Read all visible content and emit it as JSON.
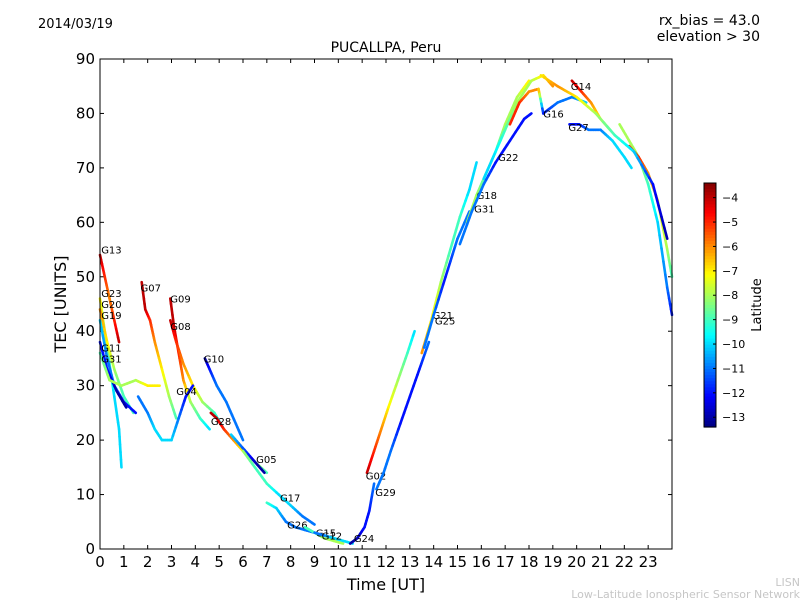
{
  "header": {
    "date": "2014/03/19",
    "rx_bias": "rx_bias = 43.0",
    "elevation": "elevation > 30"
  },
  "footer": {
    "line1": "LISN",
    "line2": "Low-Latitude Ionospheric Sensor Network"
  },
  "chart_data": {
    "type": "scatter",
    "title": "PUCALLPA, Peru",
    "xlabel": "Time [UT]",
    "ylabel": "TEC [UNITS]",
    "xlim": [
      0,
      24
    ],
    "ylim": [
      0,
      90
    ],
    "xticks": [
      0,
      1,
      2,
      3,
      4,
      5,
      6,
      7,
      8,
      9,
      10,
      11,
      12,
      13,
      14,
      15,
      16,
      17,
      18,
      19,
      20,
      21,
      22,
      23
    ],
    "yticks": [
      0,
      10,
      20,
      30,
      40,
      50,
      60,
      70,
      80,
      90
    ],
    "grid": false,
    "colorbar": {
      "label": "Latitude",
      "min": -13.4,
      "max": -3.4,
      "ticks": [
        -4,
        -5,
        -6,
        -7,
        -8,
        -9,
        -10,
        -11,
        -12,
        -13
      ],
      "colormap": "jet"
    },
    "series": [
      {
        "name": "G13",
        "label_at": [
          0.05,
          55
        ],
        "points": [
          [
            0,
            54,
            -4
          ],
          [
            0.2,
            50,
            -5
          ],
          [
            0.4,
            46,
            -6
          ],
          [
            0.6,
            42,
            -5
          ],
          [
            0.8,
            38,
            -4
          ]
        ]
      },
      {
        "name": "G23",
        "label_at": [
          0.05,
          47
        ],
        "points": [
          [
            0,
            46,
            -7
          ],
          [
            0.2,
            40,
            -8
          ],
          [
            0.4,
            34,
            -9
          ],
          [
            0.6,
            28,
            -10
          ],
          [
            0.8,
            22,
            -10
          ],
          [
            0.9,
            15,
            -10
          ]
        ]
      },
      {
        "name": "G20",
        "label_at": [
          0.05,
          45
        ],
        "points": [
          [
            0,
            44,
            -6
          ],
          [
            0.3,
            38,
            -7
          ],
          [
            0.6,
            33,
            -8
          ],
          [
            1,
            28,
            -9
          ],
          [
            1.4,
            25,
            -9
          ]
        ]
      },
      {
        "name": "G19",
        "label_at": [
          0.05,
          43
        ],
        "points": [
          [
            0,
            42,
            -10
          ],
          [
            0.3,
            35,
            -11
          ],
          [
            0.6,
            30,
            -11
          ],
          [
            1,
            27,
            -12
          ],
          [
            1.5,
            25,
            -12
          ]
        ]
      },
      {
        "name": "G11",
        "label_at": [
          0.05,
          37
        ],
        "points": [
          [
            0,
            38,
            -12
          ],
          [
            0.3,
            33,
            -12
          ],
          [
            0.7,
            29,
            -13
          ],
          [
            1.1,
            26,
            -13
          ]
        ]
      },
      {
        "name": "G31",
        "label_at": [
          0.05,
          35
        ],
        "points": [
          [
            0,
            36,
            -9
          ],
          [
            0.4,
            31,
            -8
          ],
          [
            0.9,
            30,
            -8
          ],
          [
            1.5,
            31,
            -8
          ],
          [
            2,
            30,
            -7
          ],
          [
            2.5,
            30,
            -7
          ]
        ]
      },
      {
        "name": "G07",
        "label_at": [
          1.7,
          48
        ],
        "points": [
          [
            1.75,
            49,
            -4
          ],
          [
            1.9,
            44,
            -4
          ],
          [
            2.1,
            42,
            -5
          ],
          [
            2.3,
            38,
            -6
          ],
          [
            2.6,
            33,
            -7
          ],
          [
            2.9,
            28,
            -8
          ],
          [
            3.2,
            24,
            -9
          ]
        ]
      },
      {
        "name": "G09",
        "label_at": [
          2.95,
          46
        ],
        "points": [
          [
            2.95,
            46,
            -4
          ],
          [
            3.1,
            41,
            -4
          ],
          [
            3.3,
            36,
            -5
          ],
          [
            3.5,
            31,
            -6
          ],
          [
            3.8,
            27,
            -8
          ],
          [
            4.2,
            24,
            -9
          ],
          [
            4.6,
            22,
            -10
          ]
        ]
      },
      {
        "name": "G08",
        "label_at": [
          2.95,
          41
        ],
        "points": [
          [
            2.95,
            42,
            -4
          ],
          [
            3.2,
            38,
            -5
          ],
          [
            3.5,
            34,
            -6
          ],
          [
            3.9,
            30,
            -7
          ],
          [
            4.3,
            27,
            -8
          ],
          [
            4.8,
            25,
            -9
          ],
          [
            5.2,
            22,
            -10
          ]
        ]
      },
      {
        "name": "G10",
        "label_at": [
          4.35,
          35
        ],
        "points": [
          [
            4.4,
            35,
            -13
          ],
          [
            4.6,
            33,
            -12
          ],
          [
            4.9,
            30,
            -11
          ],
          [
            5.3,
            27,
            -11
          ],
          [
            5.7,
            23,
            -11
          ],
          [
            6,
            20,
            -11
          ]
        ]
      },
      {
        "name": "G04",
        "label_at": [
          3.2,
          29
        ],
        "points": [
          [
            1.6,
            28,
            -11
          ],
          [
            2,
            25,
            -11
          ],
          [
            2.3,
            22,
            -10
          ],
          [
            2.6,
            20,
            -10
          ],
          [
            3,
            20,
            -10
          ],
          [
            3.3,
            24,
            -11
          ],
          [
            3.6,
            28,
            -12
          ],
          [
            3.9,
            30,
            -12
          ]
        ]
      },
      {
        "name": "G28",
        "label_at": [
          4.65,
          23.5
        ],
        "points": [
          [
            4.65,
            25,
            -4
          ],
          [
            4.9,
            24,
            -4
          ],
          [
            5.2,
            22,
            -5
          ],
          [
            5.6,
            20,
            -6
          ],
          [
            6,
            18,
            -7
          ],
          [
            6.5,
            16,
            -8
          ],
          [
            7,
            14,
            -9
          ]
        ]
      },
      {
        "name": "G05",
        "label_at": [
          6.55,
          16.5
        ],
        "points": [
          [
            5.5,
            21,
            -10
          ],
          [
            5.9,
            19,
            -11
          ],
          [
            6.3,
            17,
            -12
          ],
          [
            6.6,
            15.5,
            -13
          ],
          [
            6.9,
            14,
            -13
          ]
        ]
      },
      {
        "name": "G17",
        "label_at": [
          7.55,
          9.5
        ],
        "points": [
          [
            6,
            18,
            -8
          ],
          [
            6.5,
            15,
            -9
          ],
          [
            7,
            12,
            -9
          ],
          [
            7.5,
            10,
            -10
          ],
          [
            8,
            8,
            -10
          ],
          [
            8.5,
            6,
            -11
          ],
          [
            9,
            4.5,
            -11
          ]
        ]
      },
      {
        "name": "G26",
        "label_at": [
          7.85,
          4.5
        ],
        "points": [
          [
            7,
            8.5,
            -9
          ],
          [
            7.4,
            7.5,
            -10
          ],
          [
            7.8,
            5,
            -11
          ],
          [
            8.2,
            4,
            -11
          ],
          [
            8.6,
            3.5,
            -11
          ],
          [
            9,
            3,
            -11
          ]
        ]
      },
      {
        "name": "G15",
        "label_at": [
          9.05,
          3
        ],
        "points": [
          [
            8.6,
            4,
            -9
          ],
          [
            9,
            3,
            -9
          ],
          [
            9.4,
            2,
            -8
          ],
          [
            9.8,
            1.5,
            -8
          ],
          [
            10.2,
            1,
            -8
          ]
        ]
      },
      {
        "name": "G12",
        "label_at": [
          9.3,
          2.5
        ],
        "points": [
          [
            9,
            3,
            -11
          ],
          [
            9.4,
            2.5,
            -11
          ],
          [
            9.8,
            2,
            -10
          ],
          [
            10.2,
            1.5,
            -10
          ],
          [
            10.6,
            1,
            -10
          ]
        ]
      },
      {
        "name": "G24",
        "label_at": [
          10.65,
          2
        ],
        "points": [
          [
            10.5,
            1,
            -13
          ],
          [
            10.8,
            2,
            -13
          ],
          [
            11.1,
            4,
            -12
          ],
          [
            11.3,
            7,
            -12
          ],
          [
            11.5,
            12,
            -11
          ]
        ]
      },
      {
        "name": "G02",
        "label_at": [
          11.15,
          13.5
        ],
        "points": [
          [
            11.2,
            14,
            -4
          ],
          [
            11.5,
            18,
            -5
          ],
          [
            11.8,
            22,
            -6
          ],
          [
            12.1,
            26,
            -7
          ],
          [
            12.5,
            31,
            -8
          ],
          [
            12.9,
            36,
            -9
          ],
          [
            13.2,
            40,
            -10
          ]
        ]
      },
      {
        "name": "G29",
        "label_at": [
          11.55,
          10.5
        ],
        "points": [
          [
            11.6,
            11,
            -11
          ],
          [
            11.9,
            14,
            -11
          ],
          [
            12.2,
            18,
            -11
          ],
          [
            12.6,
            23,
            -12
          ],
          [
            13,
            28,
            -12
          ],
          [
            13.4,
            33,
            -12
          ],
          [
            13.8,
            38,
            -11
          ]
        ]
      },
      {
        "name": "G21",
        "label_at": [
          13.95,
          43
        ],
        "points": [
          [
            13.5,
            36,
            -6
          ],
          [
            13.9,
            42,
            -7
          ],
          [
            14.3,
            49,
            -8
          ],
          [
            14.7,
            55,
            -9
          ],
          [
            15.1,
            61,
            -9
          ],
          [
            15.5,
            66,
            -10
          ],
          [
            15.8,
            71,
            -10
          ]
        ]
      },
      {
        "name": "G25",
        "label_at": [
          14.05,
          42
        ],
        "points": [
          [
            13.6,
            37,
            -11
          ],
          [
            14,
            43,
            -11
          ],
          [
            14.5,
            50,
            -12
          ],
          [
            15,
            57,
            -11
          ],
          [
            15.5,
            62,
            -11
          ]
        ]
      },
      {
        "name": "G18",
        "label_at": [
          15.8,
          65
        ],
        "points": [
          [
            15.4,
            60,
            -8
          ],
          [
            15.8,
            65,
            -8
          ],
          [
            16.2,
            69,
            -9
          ],
          [
            16.6,
            73,
            -9
          ],
          [
            17,
            78,
            -8
          ],
          [
            17.5,
            83,
            -8
          ],
          [
            18,
            86,
            -7
          ]
        ]
      },
      {
        "name": "G31",
        "label_at": [
          15.7,
          62.5
        ],
        "points": [
          [
            15.1,
            56,
            -11
          ],
          [
            15.6,
            62,
            -11
          ],
          [
            16.1,
            67,
            -11
          ],
          [
            16.6,
            71,
            -12
          ],
          [
            17.2,
            75,
            -12
          ],
          [
            17.8,
            79,
            -12
          ],
          [
            18.1,
            80,
            -12
          ]
        ]
      },
      {
        "name": "G22",
        "label_at": [
          16.7,
          72
        ],
        "points": [
          [
            16.1,
            68,
            -10
          ],
          [
            16.5,
            72,
            -10
          ],
          [
            17,
            77,
            -9
          ],
          [
            17.5,
            82,
            -8
          ],
          [
            18.1,
            86,
            -8
          ],
          [
            18.6,
            87,
            -7
          ],
          [
            19,
            85,
            -6
          ]
        ]
      },
      {
        "name": "G16",
        "label_at": [
          18.6,
          80
        ],
        "points": [
          [
            17.2,
            78,
            -5
          ],
          [
            17.6,
            82,
            -5
          ],
          [
            18,
            84,
            -6
          ],
          [
            18.4,
            84.5,
            -6
          ],
          [
            18.6,
            80,
            -12
          ],
          [
            19.2,
            82,
            -11
          ],
          [
            19.8,
            83,
            -11
          ],
          [
            20.4,
            82,
            -10
          ]
        ]
      },
      {
        "name": "G14",
        "label_at": [
          19.75,
          85
        ],
        "points": [
          [
            19.8,
            86,
            -4
          ],
          [
            20.2,
            84,
            -5
          ],
          [
            20.6,
            82,
            -6
          ],
          [
            21,
            79,
            -7
          ],
          [
            21.4,
            77,
            -8
          ]
        ]
      },
      {
        "name": "G27",
        "label_at": [
          19.65,
          77.5
        ],
        "points": [
          [
            19.7,
            78,
            -12
          ],
          [
            20.1,
            78,
            -12
          ],
          [
            20.5,
            77,
            -11
          ],
          [
            21,
            77,
            -11
          ],
          [
            21.5,
            75,
            -10
          ],
          [
            22,
            72,
            -10
          ],
          [
            22.3,
            70,
            -10
          ]
        ]
      },
      {
        "name": "",
        "label_at": null,
        "points": [
          [
            21.8,
            78,
            -8
          ],
          [
            22.2,
            75,
            -8
          ],
          [
            22.6,
            72,
            -8
          ],
          [
            23,
            67,
            -9
          ],
          [
            23.4,
            60,
            -10
          ],
          [
            23.8,
            48,
            -11
          ],
          [
            24,
            43,
            -12
          ]
        ]
      },
      {
        "name": "",
        "label_at": null,
        "points": [
          [
            22.2,
            74,
            -5
          ],
          [
            22.6,
            72,
            -5
          ],
          [
            23,
            69,
            -6
          ],
          [
            23.4,
            64,
            -7
          ],
          [
            23.8,
            55,
            -8
          ],
          [
            24,
            50,
            -9
          ]
        ]
      },
      {
        "name": "",
        "label_at": null,
        "points": [
          [
            18.5,
            87,
            -7
          ],
          [
            19.2,
            85,
            -6
          ],
          [
            20,
            83,
            -7
          ],
          [
            20.8,
            80,
            -8
          ],
          [
            21.6,
            76,
            -9
          ],
          [
            22.4,
            73,
            -10
          ],
          [
            23.2,
            67,
            -12
          ],
          [
            23.8,
            57,
            -13
          ]
        ]
      }
    ]
  }
}
